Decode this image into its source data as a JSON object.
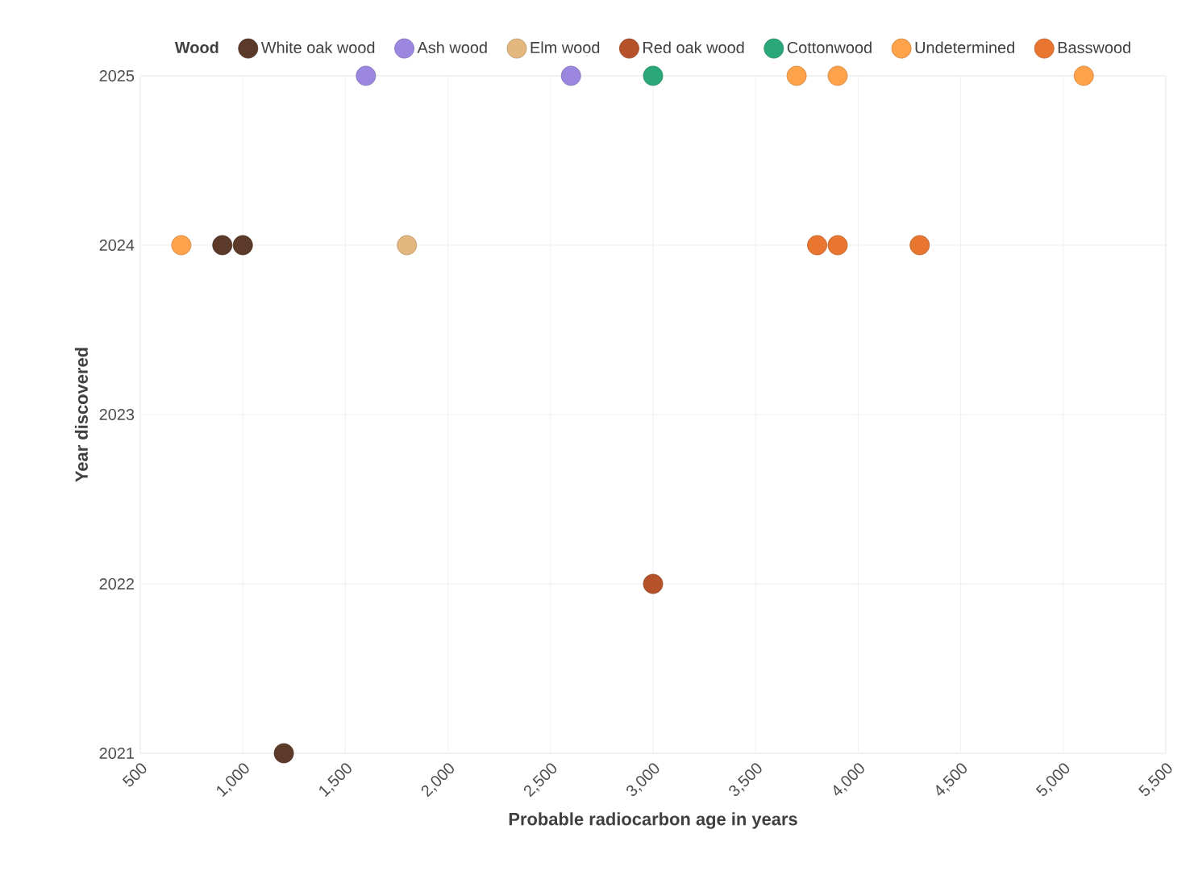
{
  "chart_data": {
    "type": "scatter",
    "legend_title": "Wood",
    "xlabel": "Probable radiocarbon age in years",
    "ylabel": "Year discovered",
    "xlim": [
      500,
      5500
    ],
    "ylim": [
      2021,
      2025
    ],
    "xticks": [
      500,
      {
        "value": 1000,
        "label": "1,000"
      },
      {
        "value": 1500,
        "label": "1,500"
      },
      {
        "value": 2000,
        "label": "2,000"
      },
      {
        "value": 2500,
        "label": "2,500"
      },
      {
        "value": 3000,
        "label": "3,000"
      },
      {
        "value": 3500,
        "label": "3,500"
      },
      {
        "value": 4000,
        "label": "4,000"
      },
      {
        "value": 4500,
        "label": "4,500"
      },
      {
        "value": 5000,
        "label": "5,000"
      },
      {
        "value": 5500,
        "label": "5,500"
      }
    ],
    "yticks": [
      2021,
      2022,
      2023,
      2024,
      2025
    ],
    "grid": true,
    "legend": "top",
    "marker": "circle",
    "series": [
      {
        "name": "White oak wood",
        "color": "#5c3a2a",
        "x": [
          900,
          1000,
          1200
        ],
        "values": [
          2024,
          2024,
          2021
        ]
      },
      {
        "name": "Ash wood",
        "color": "#9b87e0",
        "x": [
          1600,
          2600
        ],
        "values": [
          2025,
          2025
        ]
      },
      {
        "name": "Elm wood",
        "color": "#e3b77e",
        "x": [
          1800
        ],
        "values": [
          2024
        ]
      },
      {
        "name": "Red oak wood",
        "color": "#b5522a",
        "x": [
          3000
        ],
        "values": [
          2022
        ]
      },
      {
        "name": "Cottonwood",
        "color": "#2aa87a",
        "x": [
          3000
        ],
        "values": [
          2025
        ]
      },
      {
        "name": "Undetermined",
        "color": "#ffa24a",
        "x": [
          700,
          3700,
          3900,
          5100
        ],
        "values": [
          2024,
          2025,
          2025,
          2025
        ]
      },
      {
        "name": "Basswood",
        "color": "#e87530",
        "x": [
          3800,
          3900,
          4300
        ],
        "values": [
          2024,
          2024,
          2024
        ]
      }
    ]
  }
}
